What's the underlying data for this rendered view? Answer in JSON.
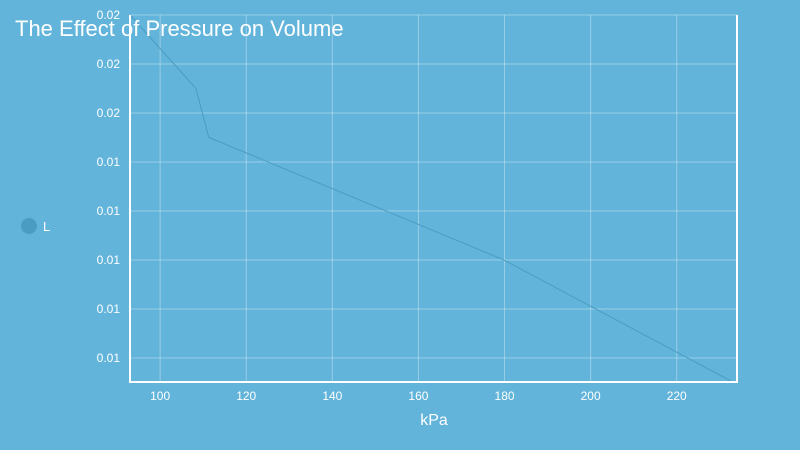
{
  "title": "The Effect of Pressure on Volume",
  "legend": [
    {
      "label": "L",
      "color": "#4a9cc2"
    }
  ],
  "colors": {
    "background": "#62b4da",
    "line": "#4a9cc2",
    "grid": "rgba(255,255,255,0.35)",
    "axis": "#ffffff"
  },
  "chart_data": {
    "type": "line",
    "title": "The Effect of Pressure on Volume",
    "xlabel": "kPa",
    "ylabel": "",
    "x_ticks": [
      100,
      120,
      140,
      160,
      180,
      200,
      220
    ],
    "y_ticks": [
      "0.02",
      "0.02",
      "0.02",
      "0.01",
      "0.01",
      "0.01",
      "0.01",
      "0.01"
    ],
    "xlim": [
      93,
      234
    ],
    "ylim": [
      0.01,
      0.0175
    ],
    "grid": true,
    "legend_position": "left",
    "series": [
      {
        "name": "L",
        "x": [
          93,
          108.3,
          111.3,
          179.7,
          233
        ],
        "values": [
          0.0175,
          0.016,
          0.015,
          0.0125,
          0.01
        ]
      }
    ]
  }
}
